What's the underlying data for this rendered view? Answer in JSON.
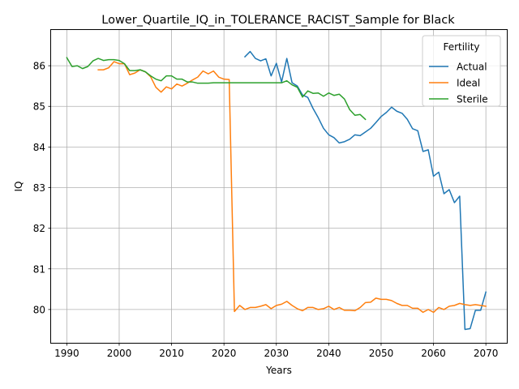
{
  "chart_data": {
    "type": "line",
    "title": "Lower_Quartile_IQ_in_TOLERANCE_RACIST_Sample for Black",
    "xlabel": "Years",
    "ylabel": "IQ",
    "xlim": [
      1987,
      2074
    ],
    "ylim": [
      79.18,
      86.88
    ],
    "x_ticks": [
      1990,
      2000,
      2010,
      2020,
      2030,
      2040,
      2050,
      2060,
      2070
    ],
    "y_ticks": [
      80,
      81,
      82,
      83,
      84,
      85,
      86
    ],
    "grid": true,
    "legend": {
      "title": "Fertility",
      "placement": "top-right"
    },
    "series": [
      {
        "name": "Actual",
        "color": "#1f77b4",
        "x": [
          2024,
          2025,
          2026,
          2027,
          2028,
          2029,
          2030,
          2031,
          2032,
          2033,
          2034,
          2035,
          2036,
          2037,
          2038,
          2039,
          2040,
          2041,
          2042,
          2043,
          2044,
          2045,
          2046,
          2047,
          2048,
          2049,
          2050,
          2051,
          2052,
          2053,
          2054,
          2055,
          2056,
          2057,
          2058,
          2059,
          2060,
          2061,
          2062,
          2063,
          2064,
          2065,
          2066,
          2067,
          2068,
          2069,
          2070
        ],
        "y": [
          86.22,
          86.35,
          86.18,
          86.12,
          86.17,
          85.75,
          86.06,
          85.6,
          86.18,
          85.58,
          85.5,
          85.28,
          85.22,
          84.95,
          84.72,
          84.46,
          84.3,
          84.23,
          84.1,
          84.13,
          84.19,
          84.3,
          84.28,
          84.37,
          84.46,
          84.6,
          84.75,
          84.85,
          84.98,
          84.88,
          84.83,
          84.68,
          84.45,
          84.4,
          83.89,
          83.93,
          83.28,
          83.38,
          82.85,
          82.95,
          82.63,
          82.79,
          79.51,
          79.53,
          79.98,
          79.98,
          80.43
        ]
      },
      {
        "name": "Ideal",
        "color": "#ff7f0e",
        "x": [
          1996,
          1997,
          1998,
          1999,
          2000,
          2001,
          2002,
          2003,
          2004,
          2005,
          2006,
          2007,
          2008,
          2009,
          2010,
          2011,
          2012,
          2013,
          2014,
          2015,
          2016,
          2017,
          2018,
          2019,
          2020,
          2021,
          2022,
          2023,
          2024,
          2025,
          2026,
          2027,
          2028,
          2029,
          2030,
          2031,
          2032,
          2033,
          2034,
          2035,
          2036,
          2037,
          2038,
          2039,
          2040,
          2041,
          2042,
          2043,
          2044,
          2045,
          2046,
          2047,
          2048,
          2049,
          2050,
          2051,
          2052,
          2053,
          2054,
          2055,
          2056,
          2057,
          2058,
          2059,
          2060,
          2061,
          2062,
          2063,
          2064,
          2065,
          2066,
          2067,
          2068,
          2069,
          2070
        ],
        "y": [
          85.9,
          85.9,
          85.95,
          86.1,
          86.05,
          86.05,
          85.78,
          85.82,
          85.9,
          85.85,
          85.73,
          85.47,
          85.35,
          85.48,
          85.43,
          85.55,
          85.5,
          85.57,
          85.65,
          85.72,
          85.87,
          85.8,
          85.87,
          85.72,
          85.67,
          85.66,
          79.95,
          80.1,
          80.0,
          80.05,
          80.05,
          80.08,
          80.12,
          80.02,
          80.1,
          80.13,
          80.2,
          80.1,
          80.02,
          79.97,
          80.05,
          80.05,
          80.0,
          80.02,
          80.08,
          80.0,
          80.05,
          79.98,
          79.98,
          79.97,
          80.05,
          80.17,
          80.18,
          80.28,
          80.25,
          80.25,
          80.22,
          80.15,
          80.1,
          80.1,
          80.03,
          80.03,
          79.93,
          80.0,
          79.93,
          80.05,
          80.0,
          80.08,
          80.1,
          80.15,
          80.12,
          80.1,
          80.12,
          80.1,
          80.08
        ]
      },
      {
        "name": "Sterile",
        "color": "#2ca02c",
        "x": [
          1990,
          1991,
          1992,
          1993,
          1994,
          1995,
          1996,
          1997,
          1998,
          1999,
          2000,
          2001,
          2002,
          2003,
          2004,
          2005,
          2006,
          2007,
          2008,
          2009,
          2010,
          2011,
          2012,
          2013,
          2014,
          2015,
          2016,
          2017,
          2018,
          2019,
          2020,
          2021,
          2022,
          2023,
          2024,
          2025,
          2026,
          2027,
          2028,
          2029,
          2030,
          2031,
          2032,
          2033,
          2034,
          2035,
          2036,
          2037,
          2038,
          2039,
          2040,
          2041,
          2042,
          2043,
          2044,
          2045,
          2046,
          2047
        ],
        "y": [
          86.2,
          85.98,
          86.0,
          85.93,
          85.98,
          86.12,
          86.18,
          86.13,
          86.15,
          86.15,
          86.13,
          86.05,
          85.88,
          85.88,
          85.9,
          85.85,
          85.75,
          85.67,
          85.63,
          85.75,
          85.75,
          85.67,
          85.67,
          85.6,
          85.6,
          85.57,
          85.57,
          85.57,
          85.58,
          85.58,
          85.58,
          85.58,
          85.58,
          85.58,
          85.58,
          85.58,
          85.58,
          85.58,
          85.58,
          85.58,
          85.58,
          85.58,
          85.63,
          85.53,
          85.47,
          85.23,
          85.38,
          85.32,
          85.33,
          85.25,
          85.33,
          85.27,
          85.3,
          85.18,
          84.92,
          84.78,
          84.8,
          84.68
        ]
      }
    ]
  }
}
